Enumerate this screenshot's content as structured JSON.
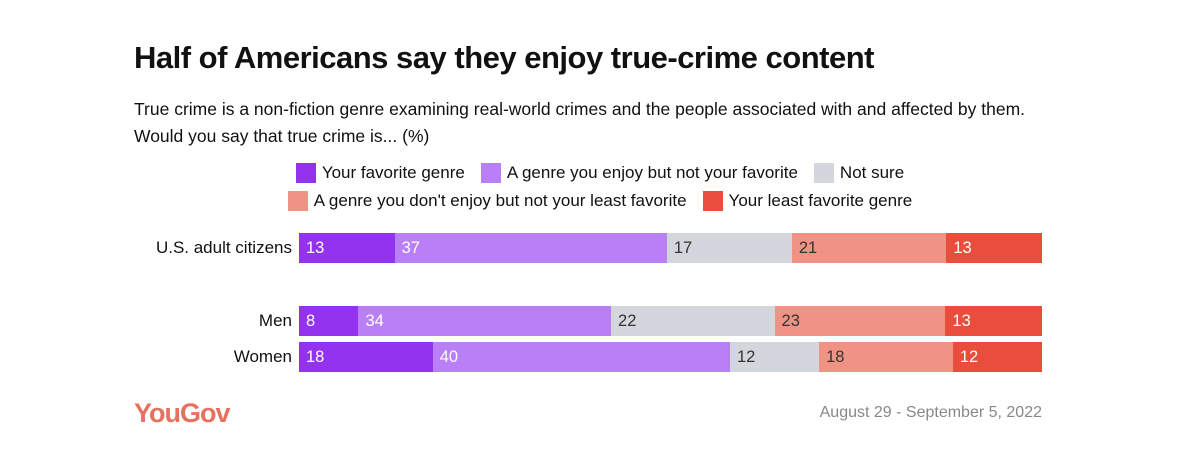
{
  "chart_data": {
    "type": "bar",
    "orientation": "horizontal-stacked",
    "title": "Half of Americans say they enjoy true-crime content",
    "subtitle": "True crime is a non-fiction genre examining real-world crimes and the people associated with and affected by them. Would you say that true crime is... (%)",
    "categories": [
      "U.S. adult citizens",
      "Men",
      "Women"
    ],
    "series": [
      {
        "name": "Your favorite genre",
        "color": "#9333f0",
        "values": [
          13,
          8,
          18
        ]
      },
      {
        "name": "A genre you enjoy but not your favorite",
        "color": "#b97ff7",
        "values": [
          37,
          34,
          40
        ]
      },
      {
        "name": "Not sure",
        "color": "#d3d6dc",
        "values": [
          17,
          22,
          12
        ]
      },
      {
        "name": "A genre you don't enjoy but not your least favorite",
        "color": "#f09384",
        "values": [
          21,
          23,
          18
        ]
      },
      {
        "name": "Your least favorite genre",
        "color": "#e94d3c",
        "values": [
          13,
          13,
          12
        ]
      }
    ],
    "legend": "top"
  },
  "footer": {
    "logo": "YouGov",
    "date": "August 29 - September 5, 2022"
  }
}
